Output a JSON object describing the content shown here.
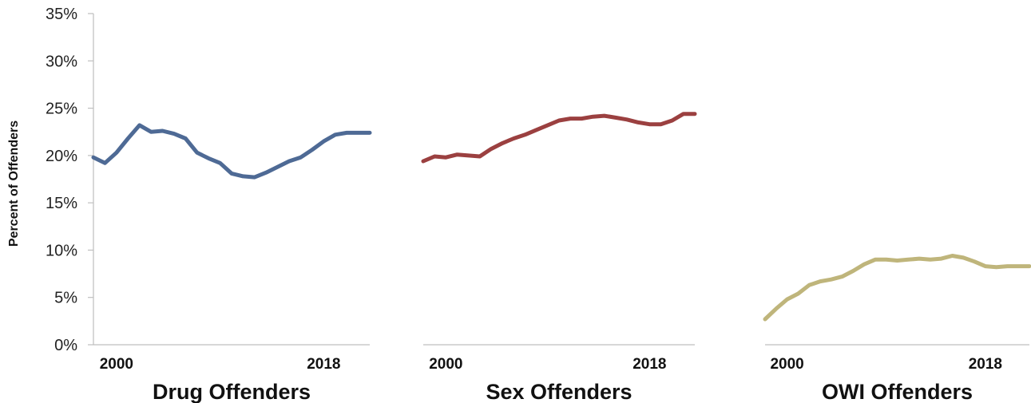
{
  "chart_data": {
    "type": "line",
    "ylabel": "Percent of Offenders",
    "ylim": [
      0,
      35
    ],
    "y_ticks": [
      "0%",
      "5%",
      "10%",
      "15%",
      "20%",
      "25%",
      "30%",
      "35%"
    ],
    "y_tick_values": [
      0,
      5,
      10,
      15,
      20,
      25,
      30,
      35
    ],
    "x_ticks": [
      "2000",
      "2018"
    ],
    "x_tick_values": [
      2000,
      2018
    ],
    "panels": [
      {
        "title": "Drug Offenders",
        "color": "#4E6A95",
        "show_y_axis": true,
        "x": [
          1998,
          1999,
          2000,
          2001,
          2002,
          2003,
          2004,
          2005,
          2006,
          2007,
          2008,
          2009,
          2010,
          2011,
          2012,
          2013,
          2014,
          2015,
          2016,
          2017,
          2018,
          2019,
          2020,
          2021,
          2022
        ],
        "values": [
          19.8,
          19.2,
          20.3,
          21.8,
          23.2,
          22.5,
          22.6,
          22.3,
          21.8,
          20.3,
          19.7,
          19.2,
          18.1,
          17.8,
          17.7,
          18.2,
          18.8,
          19.4,
          19.8,
          20.6,
          21.5,
          22.2,
          22.4,
          22.4,
          22.4
        ]
      },
      {
        "title": "Sex Offenders",
        "color": "#9B4040",
        "show_y_axis": false,
        "x": [
          1998,
          1999,
          2000,
          2001,
          2002,
          2003,
          2004,
          2005,
          2006,
          2007,
          2008,
          2009,
          2010,
          2011,
          2012,
          2013,
          2014,
          2015,
          2016,
          2017,
          2018,
          2019,
          2020,
          2021,
          2022
        ],
        "values": [
          19.4,
          19.9,
          19.8,
          20.1,
          20.0,
          19.9,
          20.7,
          21.3,
          21.8,
          22.2,
          22.7,
          23.2,
          23.7,
          23.9,
          23.9,
          24.1,
          24.2,
          24.0,
          23.8,
          23.5,
          23.3,
          23.3,
          23.7,
          24.4,
          24.4
        ]
      },
      {
        "title": "OWI Offenders",
        "color": "#BFB57B",
        "show_y_axis": false,
        "x": [
          1998,
          1999,
          2000,
          2001,
          2002,
          2003,
          2004,
          2005,
          2006,
          2007,
          2008,
          2009,
          2010,
          2011,
          2012,
          2013,
          2014,
          2015,
          2016,
          2017,
          2018,
          2019,
          2020,
          2021,
          2022
        ],
        "values": [
          2.7,
          3.8,
          4.8,
          5.4,
          6.3,
          6.7,
          6.9,
          7.2,
          7.8,
          8.5,
          9.0,
          9.0,
          8.9,
          9.0,
          9.1,
          9.0,
          9.1,
          9.4,
          9.2,
          8.8,
          8.3,
          8.2,
          8.3,
          8.3,
          8.3
        ]
      }
    ]
  }
}
